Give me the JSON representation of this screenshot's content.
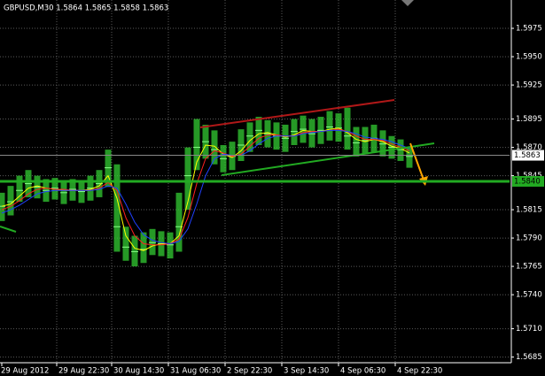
{
  "chart_data": {
    "type": "ohlc",
    "title": "GBPUSD,M30  1.5864 1.5865 1.5858 1.5863",
    "x": [
      0,
      5,
      10,
      15,
      20,
      25,
      30,
      35,
      40,
      45,
      50,
      55,
      60,
      65,
      70,
      75,
      80,
      85,
      90,
      95,
      100,
      105,
      110,
      115,
      120,
      125,
      130,
      135,
      140,
      145,
      150,
      155,
      160,
      165,
      170,
      175,
      180,
      185,
      190,
      195,
      200,
      205,
      210,
      215,
      220,
      225,
      230
    ],
    "high": [
      1.583,
      1.5836,
      1.5845,
      1.585,
      1.5845,
      1.5842,
      1.5843,
      1.584,
      1.5842,
      1.584,
      1.5845,
      1.585,
      1.5868,
      1.5855,
      1.58,
      1.5792,
      1.5795,
      1.5798,
      1.5796,
      1.5795,
      1.583,
      1.587,
      1.5895,
      1.589,
      1.5885,
      1.5872,
      1.5875,
      1.5886,
      1.5892,
      1.5897,
      1.5894,
      1.5892,
      1.589,
      1.5895,
      1.5898,
      1.5895,
      1.5897,
      1.5902,
      1.59,
      1.5905,
      1.5888,
      1.5888,
      1.589,
      1.5885,
      1.588,
      1.5877,
      1.587
    ],
    "low": [
      1.5805,
      1.581,
      1.5822,
      1.5826,
      1.5825,
      1.5822,
      1.5824,
      1.582,
      1.5823,
      1.5821,
      1.5823,
      1.5826,
      1.5835,
      1.5778,
      1.577,
      1.5765,
      1.5768,
      1.5775,
      1.5774,
      1.5772,
      1.5778,
      1.5815,
      1.585,
      1.586,
      1.5855,
      1.5848,
      1.585,
      1.5858,
      1.5866,
      1.5872,
      1.587,
      1.5868,
      1.5866,
      1.5872,
      1.5874,
      1.587,
      1.5873,
      1.5876,
      1.5875,
      1.5868,
      1.5862,
      1.5864,
      1.5866,
      1.5862,
      1.586,
      1.5858,
      1.5852
    ],
    "close": [
      1.5818,
      1.5822,
      1.5832,
      1.5838,
      1.5835,
      1.5832,
      1.5834,
      1.583,
      1.5833,
      1.5831,
      1.5834,
      1.5838,
      1.5852,
      1.58,
      1.5782,
      1.5778,
      1.578,
      1.5786,
      1.5785,
      1.5784,
      1.58,
      1.5845,
      1.587,
      1.5875,
      1.5868,
      1.586,
      1.5862,
      1.5872,
      1.588,
      1.5885,
      1.5882,
      1.588,
      1.5878,
      1.5884,
      1.5886,
      1.5882,
      1.5885,
      1.5888,
      1.5887,
      1.588,
      1.5874,
      1.5876,
      1.5878,
      1.5873,
      1.587,
      1.5868,
      1.5862
    ],
    "bar_color": "#33cc33",
    "series": [
      {
        "color": "#ffff00",
        "values": [
          1.5818,
          1.582,
          1.5827,
          1.5834,
          1.5836,
          1.5834,
          1.5833,
          1.5832,
          1.5832,
          1.5832,
          1.5833,
          1.5836,
          1.5845,
          1.5825,
          1.5792,
          1.5781,
          1.5779,
          1.5783,
          1.5785,
          1.5785,
          1.5792,
          1.5822,
          1.5857,
          1.5872,
          1.5871,
          1.5864,
          1.5861,
          1.5867,
          1.5876,
          1.5882,
          1.5883,
          1.5881,
          1.5879,
          1.5881,
          1.5885,
          1.5884,
          1.5884,
          1.5886,
          1.5887,
          1.5883,
          1.5877,
          1.5875,
          1.5877,
          1.5875,
          1.5871,
          1.5869,
          1.5865
        ]
      },
      {
        "color": "#ff2020",
        "values": [
          1.5815,
          1.5818,
          1.5823,
          1.5829,
          1.5833,
          1.5834,
          1.5833,
          1.5833,
          1.5832,
          1.5832,
          1.5832,
          1.5834,
          1.5839,
          1.5832,
          1.5808,
          1.5792,
          1.5785,
          1.5784,
          1.5784,
          1.5785,
          1.5789,
          1.5808,
          1.5838,
          1.586,
          1.5867,
          1.5865,
          1.5862,
          1.5864,
          1.5871,
          1.5878,
          1.5881,
          1.5881,
          1.588,
          1.588,
          1.5883,
          1.5884,
          1.5884,
          1.5885,
          1.5886,
          1.5884,
          1.588,
          1.5877,
          1.5877,
          1.5876,
          1.5873,
          1.587,
          1.5867
        ]
      },
      {
        "color": "#2040ff",
        "values": [
          1.5812,
          1.5815,
          1.5819,
          1.5824,
          1.5829,
          1.5831,
          1.5832,
          1.5832,
          1.5832,
          1.5832,
          1.5832,
          1.5833,
          1.5836,
          1.5834,
          1.582,
          1.5804,
          1.5793,
          1.5788,
          1.5786,
          1.5785,
          1.5787,
          1.5798,
          1.582,
          1.5845,
          1.586,
          1.5864,
          1.5863,
          1.5863,
          1.5867,
          1.5873,
          1.5878,
          1.588,
          1.588,
          1.588,
          1.5882,
          1.5883,
          1.5884,
          1.5885,
          1.5885,
          1.5884,
          1.5882,
          1.5879,
          1.5878,
          1.5877,
          1.5875,
          1.5872,
          1.5869
        ]
      }
    ],
    "xlim": [
      -1,
      286.5
    ],
    "xticks": [
      {
        "value": 0,
        "label": "29 Aug 2012"
      },
      {
        "value": 31,
        "label": "29 Aug 22:30"
      },
      {
        "value": 62,
        "label": "30 Aug 14:30"
      },
      {
        "value": 94,
        "label": "31 Aug 06:30"
      },
      {
        "value": 126,
        "label": "2 Sep 22:30"
      },
      {
        "value": 158,
        "label": "3 Sep 14:30"
      },
      {
        "value": 190,
        "label": "4 Sep 06:30"
      },
      {
        "value": 222,
        "label": "4 Sep 22:30"
      }
    ],
    "ylim": [
      1.568,
      1.6
    ],
    "yticks": [
      {
        "value": 1.5685,
        "label": "1.5685"
      },
      {
        "value": 1.571,
        "label": "1.5710"
      },
      {
        "value": 1.574,
        "label": "1.5740"
      },
      {
        "value": 1.5765,
        "label": "1.5765"
      },
      {
        "value": 1.579,
        "label": "1.5790"
      },
      {
        "value": 1.5815,
        "label": "1.5815"
      },
      {
        "value": 1.5845,
        "label": "1.5845"
      },
      {
        "value": 1.587,
        "label": "1.5870"
      },
      {
        "value": 1.5895,
        "label": "1.5895"
      },
      {
        "value": 1.5925,
        "label": "1.5925"
      },
      {
        "value": 1.595,
        "label": "1.5950"
      },
      {
        "value": 1.5975,
        "label": "1.5975"
      }
    ],
    "grid": true,
    "current_price": {
      "value": 1.5863,
      "label": "1.5863"
    },
    "level": {
      "value": 1.584,
      "label": "1.5840",
      "color": "#22aa22"
    }
  }
}
